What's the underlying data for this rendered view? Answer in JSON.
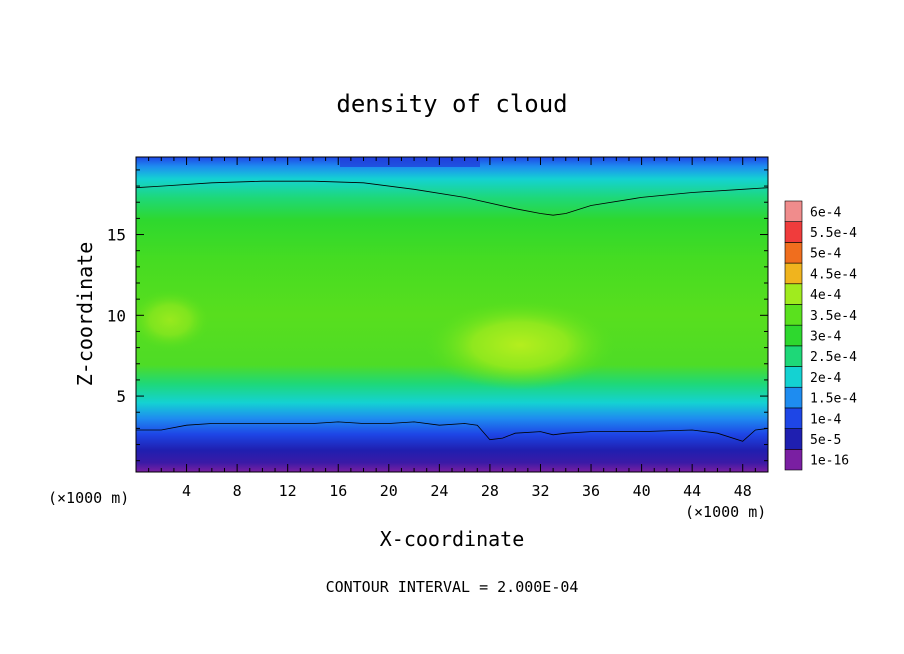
{
  "chart_data": {
    "type": "heatmap",
    "title": "density of cloud",
    "xlabel": "X-coordinate",
    "ylabel": "Z-coordinate",
    "x_unit_left": "(×1000 m)",
    "x_unit_right": "(×1000 m)",
    "xlim": [
      0,
      50
    ],
    "ylim": [
      0.3,
      19.8
    ],
    "x_ticks": [
      "4",
      "8",
      "12",
      "16",
      "20",
      "24",
      "28",
      "32",
      "36",
      "40",
      "44",
      "48"
    ],
    "x_tick_values": [
      4,
      8,
      12,
      16,
      20,
      24,
      28,
      32,
      36,
      40,
      44,
      48
    ],
    "y_ticks": [
      "5",
      "10",
      "15"
    ],
    "y_tick_values": [
      5,
      10,
      15
    ],
    "footer": "CONTOUR INTERVAL = 2.000E-04",
    "colorbar": {
      "labels": [
        "1e-16",
        "5e-5",
        "1e-4",
        "1.5e-4",
        "2e-4",
        "2.5e-4",
        "3e-4",
        "3.5e-4",
        "4e-4",
        "4.5e-4",
        "5e-4",
        "5.5e-4",
        "6e-4"
      ],
      "colors": [
        "#7a1fa2",
        "#1f1fb0",
        "#1e46e6",
        "#1e8cf0",
        "#14d2d2",
        "#1ed878",
        "#2ed82e",
        "#5ae11e",
        "#a0eb1e",
        "#f0b41e",
        "#f06e1e",
        "#f03c3c",
        "#f08c8c"
      ]
    },
    "contour_lines": [
      {
        "level": "2e-4",
        "x": [
          0,
          2,
          6,
          10,
          14,
          18,
          22,
          26,
          30,
          32,
          33,
          34,
          36,
          40,
          44,
          48,
          50
        ],
        "z": [
          17.9,
          18.0,
          18.2,
          18.3,
          18.3,
          18.2,
          17.8,
          17.3,
          16.6,
          16.3,
          16.2,
          16.3,
          16.8,
          17.3,
          17.6,
          17.8,
          17.9
        ]
      },
      {
        "level": "2e-4",
        "x": [
          0,
          2,
          4,
          6,
          10,
          14,
          16,
          18,
          20,
          22,
          24,
          26,
          27,
          28,
          29,
          30,
          32,
          33,
          34,
          36,
          40,
          44,
          46,
          48,
          49,
          50
        ],
        "z": [
          2.9,
          2.9,
          3.2,
          3.3,
          3.3,
          3.3,
          3.4,
          3.3,
          3.3,
          3.4,
          3.2,
          3.3,
          3.2,
          2.3,
          2.4,
          2.7,
          2.8,
          2.6,
          2.7,
          2.8,
          2.8,
          2.9,
          2.7,
          2.2,
          2.9,
          3.0
        ]
      }
    ]
  }
}
